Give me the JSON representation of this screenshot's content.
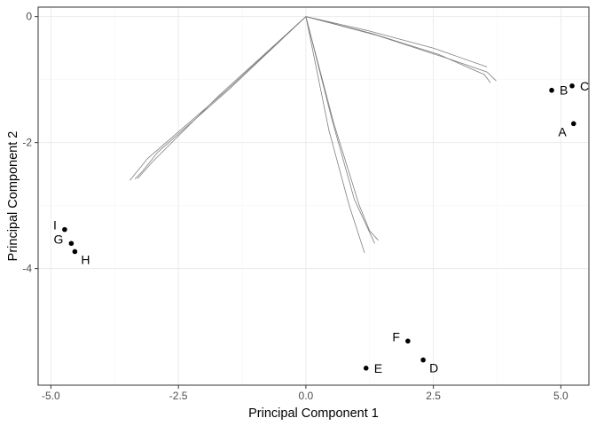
{
  "chart_data": {
    "type": "scatter",
    "title": "",
    "xlabel": "Principal Component 1",
    "ylabel": "Principal Component 2",
    "xlim": [
      -5.25,
      5.55
    ],
    "ylim": [
      -5.85,
      0.15
    ],
    "x_ticks": [
      -5.0,
      -2.5,
      0.0,
      2.5,
      5.0
    ],
    "x_tick_labels": [
      "-5.0",
      "-2.5",
      "0.0",
      "2.5",
      "5.0"
    ],
    "y_ticks": [
      0,
      -2,
      -4
    ],
    "y_tick_labels": [
      "0",
      "-2",
      "-4"
    ],
    "grid": true,
    "legend": "none",
    "points": [
      {
        "label": "A",
        "x": 5.25,
        "y": -1.7
      },
      {
        "label": "B",
        "x": 4.82,
        "y": -1.17
      },
      {
        "label": "C",
        "x": 5.22,
        "y": -1.1
      },
      {
        "label": "D",
        "x": 2.3,
        "y": -5.45
      },
      {
        "label": "E",
        "x": 1.18,
        "y": -5.58
      },
      {
        "label": "F",
        "x": 2.0,
        "y": -5.15
      },
      {
        "label": "G",
        "x": -4.6,
        "y": -3.6
      },
      {
        "label": "H",
        "x": -4.53,
        "y": -3.73
      },
      {
        "label": "I",
        "x": -4.73,
        "y": -3.38
      }
    ],
    "label_positions": {
      "A": "left-below",
      "B": "right",
      "C": "right",
      "D": "right-below",
      "E": "right",
      "F": "left",
      "G": "left",
      "H": "right-below",
      "I": "left"
    },
    "tree_edges": [
      {
        "group": "AB C",
        "path": [
          [
            0.0,
            0.0
          ],
          [
            1.2,
            -0.22
          ],
          [
            2.5,
            -0.5
          ],
          [
            3.55,
            -0.8
          ]
        ]
      },
      {
        "group": "AB C",
        "path": [
          [
            0.0,
            0.0
          ],
          [
            1.3,
            -0.27
          ],
          [
            2.6,
            -0.6
          ],
          [
            3.5,
            -0.92
          ],
          [
            3.62,
            -1.05
          ]
        ]
      },
      {
        "group": "AB C",
        "path": [
          [
            0.0,
            0.0
          ],
          [
            1.4,
            -0.3
          ],
          [
            2.8,
            -0.67
          ],
          [
            3.55,
            -0.88
          ],
          [
            3.73,
            -1.02
          ]
        ]
      },
      {
        "group": "DEF",
        "path": [
          [
            0.0,
            0.0
          ],
          [
            0.5,
            -1.6
          ],
          [
            0.95,
            -2.9
          ],
          [
            1.35,
            -3.6
          ]
        ]
      },
      {
        "group": "DEF",
        "path": [
          [
            0.0,
            0.0
          ],
          [
            0.55,
            -1.7
          ],
          [
            1.05,
            -3.0
          ],
          [
            1.25,
            -3.4
          ],
          [
            1.42,
            -3.55
          ]
        ]
      },
      {
        "group": "DEF",
        "path": [
          [
            0.0,
            0.0
          ],
          [
            0.45,
            -1.8
          ],
          [
            0.85,
            -3.0
          ],
          [
            1.15,
            -3.75
          ]
        ]
      },
      {
        "group": "GHI",
        "path": [
          [
            0.0,
            0.0
          ],
          [
            -1.6,
            -1.2
          ],
          [
            -3.1,
            -2.25
          ],
          [
            -3.45,
            -2.6
          ]
        ]
      },
      {
        "group": "GHI",
        "path": [
          [
            0.0,
            0.0
          ],
          [
            -1.7,
            -1.25
          ],
          [
            -3.0,
            -2.3
          ],
          [
            -3.3,
            -2.57
          ]
        ]
      },
      {
        "group": "GHI",
        "path": [
          [
            0.0,
            0.0
          ],
          [
            -1.5,
            -1.15
          ],
          [
            -2.9,
            -2.15
          ],
          [
            -3.2,
            -2.45
          ],
          [
            -3.35,
            -2.58
          ]
        ]
      }
    ]
  },
  "colors": {
    "background": "#ffffff",
    "panel_border": "#333333",
    "grid_major": "#ebebeb",
    "grid_minor": "#f5f5f5",
    "point": "#000000",
    "edge": "#7f7f7f"
  }
}
